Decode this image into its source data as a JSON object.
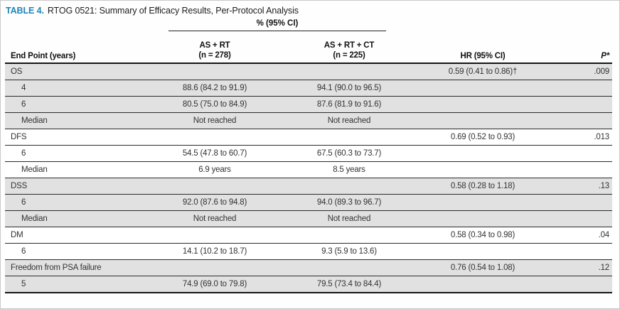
{
  "table": {
    "label": "TABLE 4.",
    "title": "RTOG 0521: Summary of Efficacy Results, Per-Protocol Analysis",
    "spanner": "% (95% CI)",
    "columns": {
      "endpoint": "End Point (years)",
      "arm1_line1": "AS + RT",
      "arm1_line2": "(n = 278)",
      "arm2_line1": "AS + RT + CT",
      "arm2_line2": "(n = 225)",
      "hr": "HR (95% CI)",
      "p": "P*"
    },
    "rows": [
      {
        "label": "OS",
        "arm1": "",
        "arm2": "",
        "hr": "0.59 (0.41 to 0.86)†",
        "p": ".009"
      },
      {
        "label": "4",
        "arm1": "88.6 (84.2 to 91.9)",
        "arm2": "94.1 (90.0 to 96.5)",
        "hr": "",
        "p": ""
      },
      {
        "label": "6",
        "arm1": "80.5 (75.0 to 84.9)",
        "arm2": "87.6 (81.9 to 91.6)",
        "hr": "",
        "p": ""
      },
      {
        "label": "Median",
        "arm1": "Not reached",
        "arm2": "Not reached",
        "hr": "",
        "p": ""
      },
      {
        "label": "DFS",
        "arm1": "",
        "arm2": "",
        "hr": "0.69 (0.52 to 0.93)",
        "p": ".013"
      },
      {
        "label": "6",
        "arm1": "54.5 (47.8 to 60.7)",
        "arm2": "67.5 (60.3 to 73.7)",
        "hr": "",
        "p": ""
      },
      {
        "label": "Median",
        "arm1": "6.9 years",
        "arm2": "8.5 years",
        "hr": "",
        "p": ""
      },
      {
        "label": "DSS",
        "arm1": "",
        "arm2": "",
        "hr": "0.58 (0.28 to 1.18)",
        "p": ".13"
      },
      {
        "label": "6",
        "arm1": "92.0 (87.6 to 94.8)",
        "arm2": "94.0 (89.3 to 96.7)",
        "hr": "",
        "p": ""
      },
      {
        "label": "Median",
        "arm1": "Not reached",
        "arm2": "Not reached",
        "hr": "",
        "p": ""
      },
      {
        "label": "DM",
        "arm1": "",
        "arm2": "",
        "hr": "0.58 (0.34 to 0.98)",
        "p": ".04"
      },
      {
        "label": "6",
        "arm1": "14.1 (10.2 to 18.7)",
        "arm2": "9.3 (5.9 to 13.6)",
        "hr": "",
        "p": ""
      },
      {
        "label": "Freedom from PSA failure",
        "arm1": "",
        "arm2": "",
        "hr": "0.76 (0.54 to 1.08)",
        "p": ".12"
      },
      {
        "label": "5",
        "arm1": "74.9 (69.0 to 79.8)",
        "arm2": "79.5 (73.4 to 84.4)",
        "hr": "",
        "p": ""
      }
    ],
    "colors": {
      "accent": "#1d84b8",
      "shaded_row": "#e1e1e1",
      "rule": "#151515"
    }
  }
}
